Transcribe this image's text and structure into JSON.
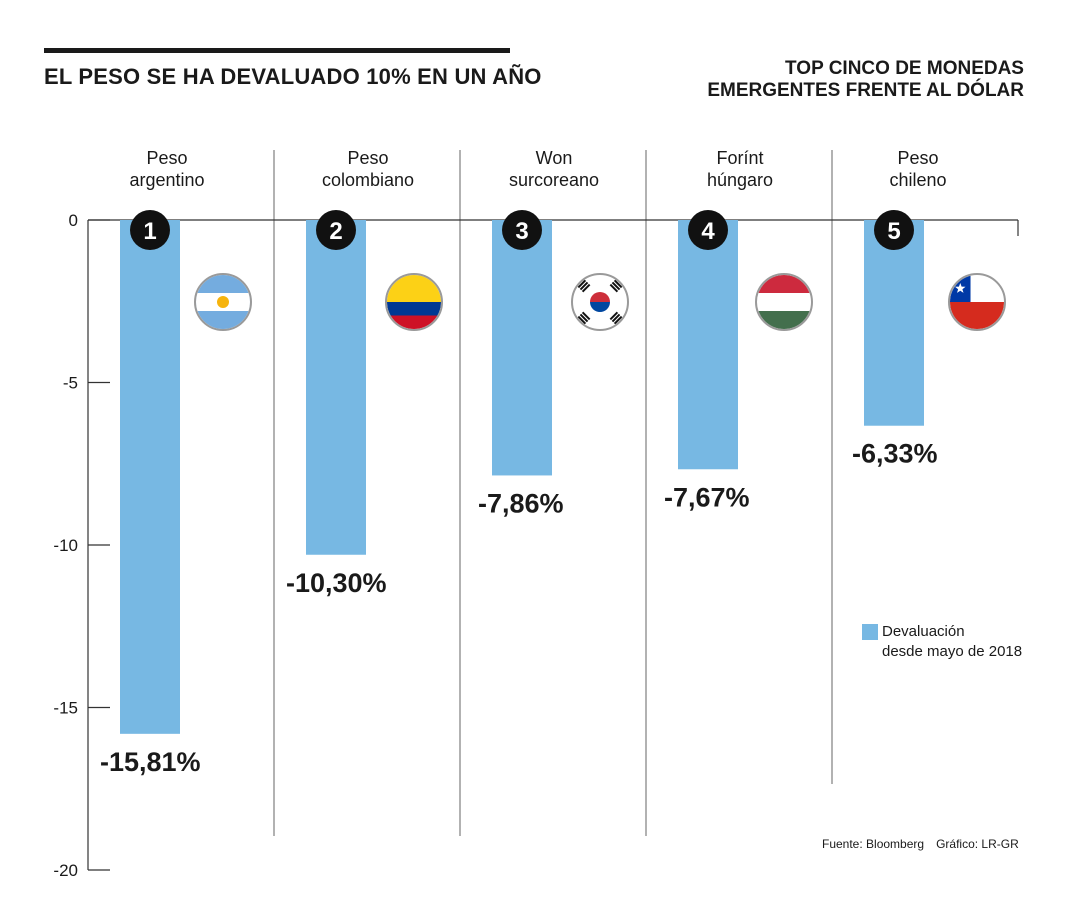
{
  "header": {
    "title": "EL PESO SE HA DEVALUADO 10% EN UN AÑO",
    "subtitle_line1": "TOP CINCO DE MONEDAS",
    "subtitle_line2": "EMERGENTES FRENTE AL DÓLAR"
  },
  "legend": {
    "label_line1": "Devaluación",
    "label_line2": "desde mayo de 2018"
  },
  "footer": {
    "source": "Fuente: Bloomberg",
    "credit": "Gráfico: LR-GR"
  },
  "colors": {
    "bar": "#77b8e3",
    "text": "#1a1a1a",
    "axis": "#333333",
    "divider": "#666666"
  },
  "chart_data": {
    "type": "bar",
    "title": "EL PESO SE HA DEVALUADO 10% EN UN AÑO",
    "categories": [
      {
        "line1": "Peso",
        "line2": "argentino"
      },
      {
        "line1": "Peso",
        "line2": "colombiano"
      },
      {
        "line1": "Won",
        "line2": "surcoreano"
      },
      {
        "line1": "Forínt",
        "line2": "húngaro"
      },
      {
        "line1": "Peso",
        "line2": "chileno"
      }
    ],
    "ranks": [
      "1",
      "2",
      "3",
      "4",
      "5"
    ],
    "values": [
      -15.81,
      -10.3,
      -7.86,
      -7.67,
      -6.33
    ],
    "value_labels": [
      "-15,81%",
      "-10,30%",
      "-7,86%",
      "-7,67%",
      "-6,33%"
    ],
    "flags": [
      "argentina-flag-icon",
      "colombia-flag-icon",
      "south-korea-flag-icon",
      "hungary-flag-icon",
      "chile-flag-icon"
    ],
    "series_name": "Devaluación desde mayo de 2018",
    "yticks": [
      0,
      -5,
      -10,
      -15,
      -20
    ],
    "ytick_labels": [
      "0",
      "-5",
      "-10",
      "-15",
      "-20"
    ],
    "ylim": [
      -20,
      0
    ],
    "xlabel": "",
    "ylabel": ""
  }
}
